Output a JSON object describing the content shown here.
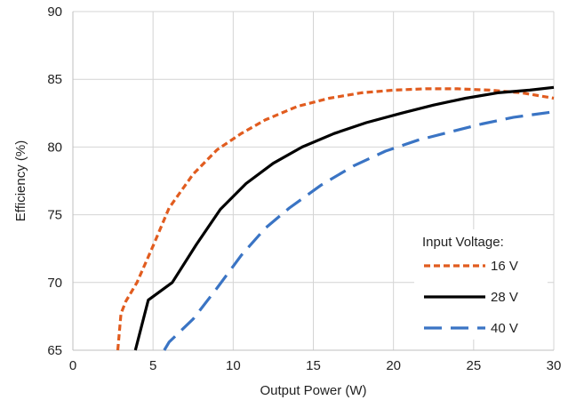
{
  "chart_data": {
    "type": "line",
    "title": "",
    "xlabel": "Output Power (W)",
    "ylabel": "Efficiency (%)",
    "xlim": [
      0,
      30
    ],
    "ylim": [
      65,
      90
    ],
    "xticks": [
      "0",
      "5",
      "10",
      "15",
      "20",
      "25",
      "30"
    ],
    "yticks": [
      "65",
      "70",
      "75",
      "80",
      "85",
      "90"
    ],
    "grid": true,
    "legend": {
      "title": "Input Voltage:",
      "placement": "bottom-right"
    },
    "series": [
      {
        "name": "16 V",
        "color": "#e15c1f",
        "dash": "short-dash",
        "x": [
          2.8,
          3.0,
          3.3,
          4.0,
          5.0,
          6.0,
          7.5,
          9.0,
          10.5,
          12.0,
          14.0,
          16.0,
          18.0,
          20.0,
          22.0,
          24.0,
          26.0,
          28.0,
          30.0
        ],
        "y": [
          65.0,
          67.7,
          68.6,
          70.0,
          72.7,
          75.5,
          78.0,
          79.8,
          81.0,
          82.0,
          83.0,
          83.6,
          84.0,
          84.2,
          84.3,
          84.3,
          84.2,
          84.0,
          83.6
        ]
      },
      {
        "name": "28 V",
        "color": "#000000",
        "dash": "solid",
        "x": [
          3.9,
          4.7,
          6.2,
          7.7,
          9.2,
          10.8,
          12.5,
          14.3,
          16.3,
          18.3,
          20.5,
          22.5,
          24.5,
          26.5,
          28.5,
          30.0
        ],
        "y": [
          65.0,
          68.7,
          70.0,
          72.8,
          75.4,
          77.3,
          78.8,
          80.0,
          81.0,
          81.8,
          82.5,
          83.1,
          83.6,
          84.0,
          84.2,
          84.4
        ]
      },
      {
        "name": "40 V",
        "color": "#3a74c4",
        "dash": "long-dash",
        "x": [
          5.7,
          6.0,
          7.5,
          9.0,
          10.5,
          12.0,
          13.5,
          15.5,
          17.5,
          19.5,
          21.5,
          23.5,
          25.5,
          27.5,
          30.0
        ],
        "y": [
          65.0,
          65.6,
          67.3,
          69.6,
          72.0,
          74.0,
          75.5,
          77.2,
          78.6,
          79.7,
          80.5,
          81.1,
          81.7,
          82.2,
          82.6
        ]
      }
    ]
  }
}
